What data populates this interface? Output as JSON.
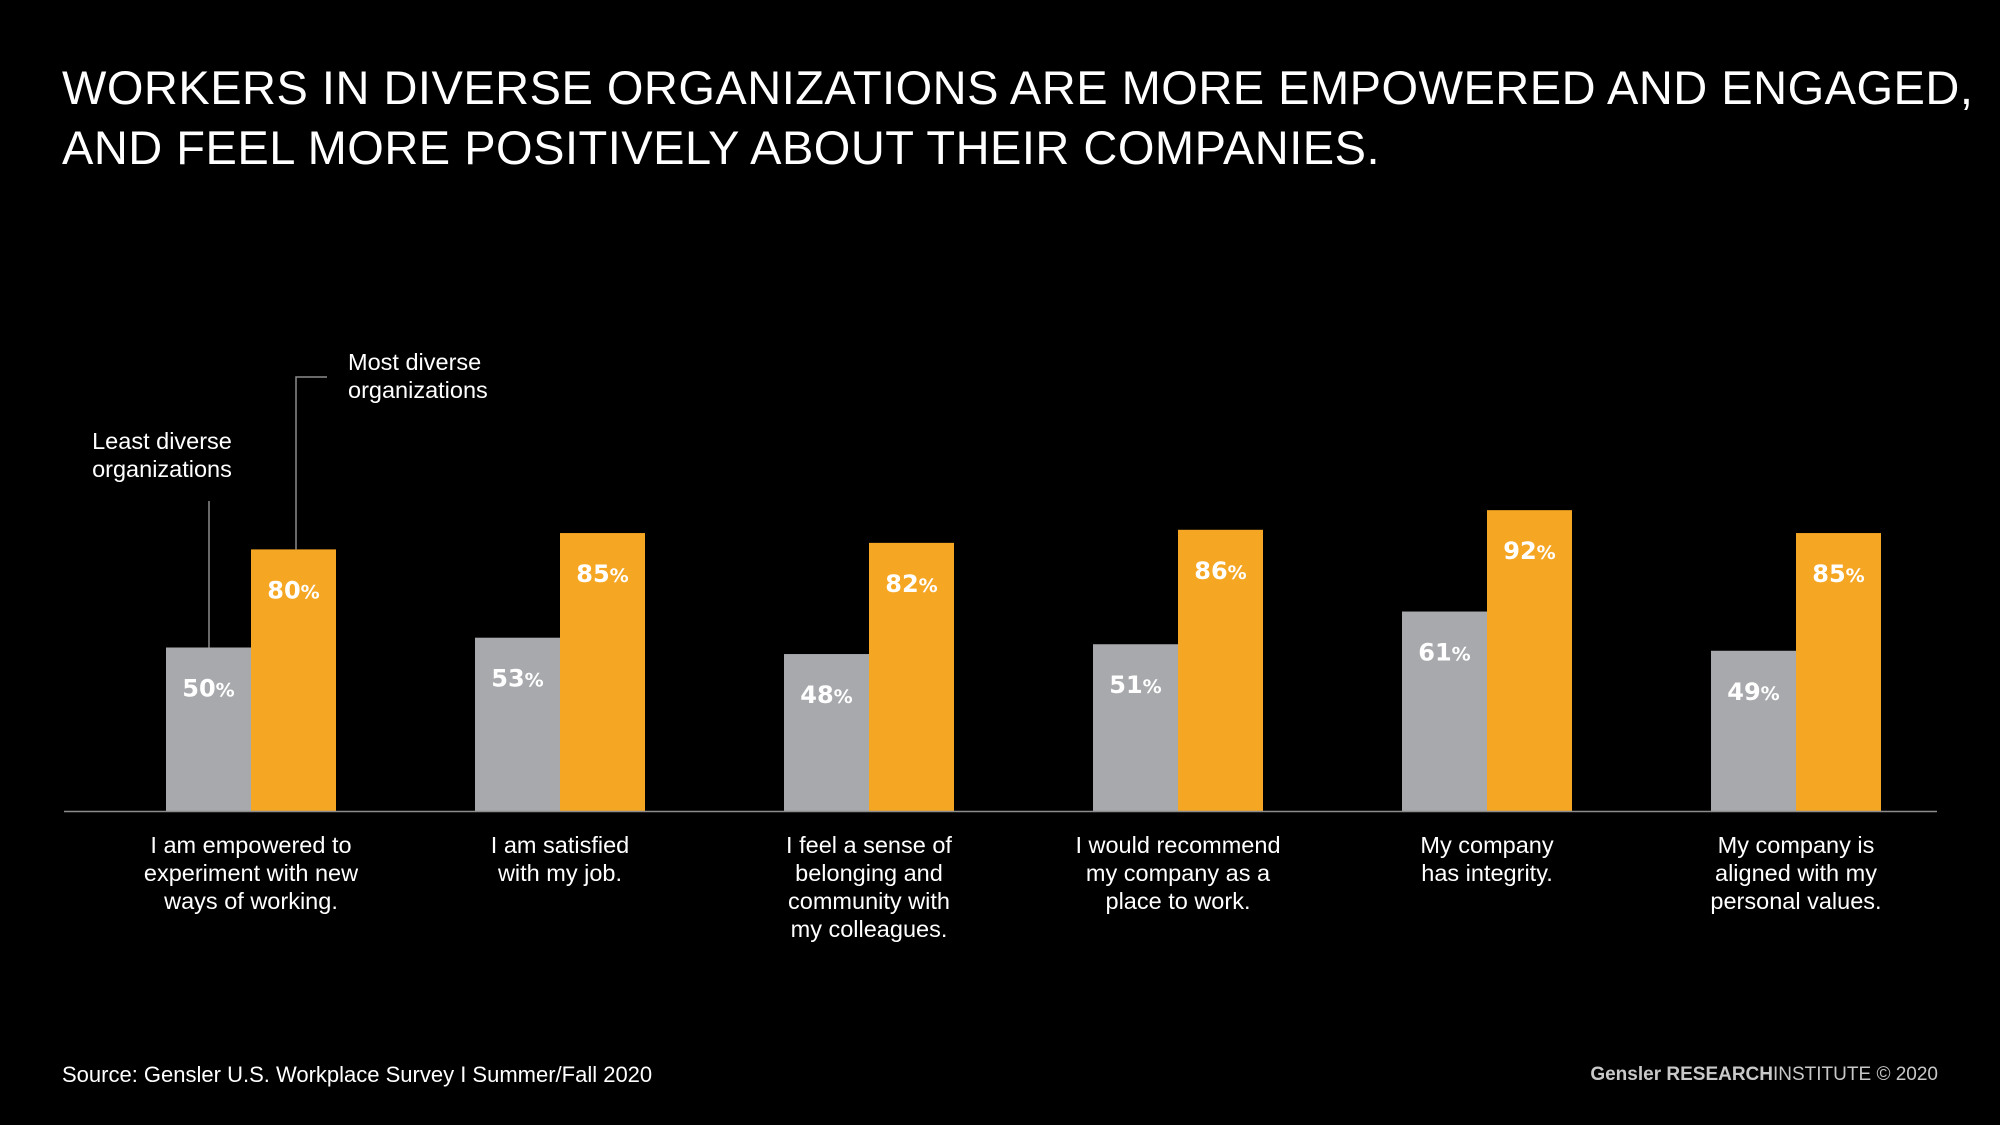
{
  "title": {
    "line1": "WORKERS IN DIVERSE ORGANIZATIONS ARE MORE EMPOWERED AND ENGAGED,",
    "line2": "AND FEEL MORE POSITIVELY ABOUT THEIR COMPANIES."
  },
  "footer": {
    "source": "Source: Gensler U.S. Workplace Survey I Summer/Fall 2020",
    "brand_name": "Gensler",
    "brand_research": "RESEARCH",
    "brand_institute": "INSTITUTE",
    "brand_copyright": "© 2020"
  },
  "colors": {
    "background": "#000000",
    "least": "#a7a9ac",
    "most": "#f5a623",
    "axis": "#8c8c8c",
    "text": "#ffffff"
  },
  "chart_data": {
    "type": "bar",
    "title": "WORKERS IN DIVERSE ORGANIZATIONS ARE MORE EMPOWERED AND ENGAGED, AND FEEL MORE POSITIVELY ABOUT THEIR COMPANIES.",
    "xlabel": "",
    "ylabel": "",
    "ylim": [
      0,
      100
    ],
    "unit": "%",
    "grid": false,
    "legend_placement": "annotated above first group",
    "categories": [
      [
        "I am empowered to",
        "experiment with new",
        "ways of working."
      ],
      [
        "I am satisfied",
        "with my job."
      ],
      [
        "I feel a sense of",
        "belonging and",
        "community with",
        "my colleagues."
      ],
      [
        "I would recommend",
        "my company as a",
        "place to work."
      ],
      [
        "My company",
        "has integrity."
      ],
      [
        "My company is",
        "aligned with my",
        "personal values."
      ]
    ],
    "series": [
      {
        "name": [
          "Least diverse",
          "organizations"
        ],
        "color": "#a7a9ac",
        "values": [
          50,
          53,
          48,
          51,
          61,
          49
        ]
      },
      {
        "name": [
          "Most diverse",
          "organizations"
        ],
        "color": "#f5a623",
        "values": [
          80,
          85,
          82,
          86,
          92,
          85
        ]
      }
    ]
  }
}
